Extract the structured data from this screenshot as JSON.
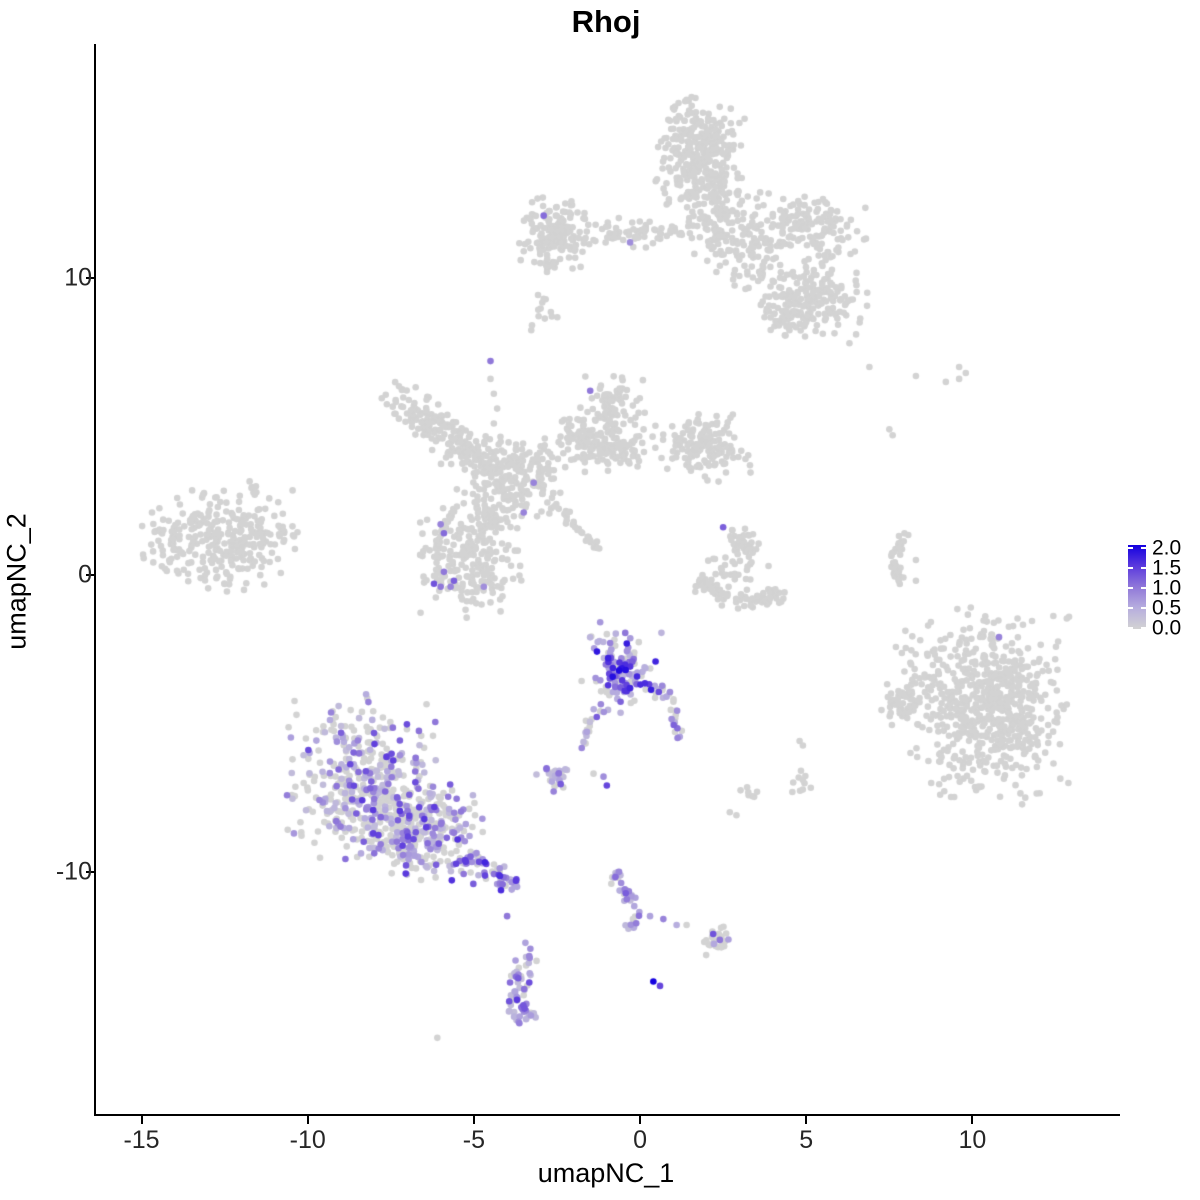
{
  "title": "Rhoj",
  "axes": {
    "x_label": "umapNC_1",
    "y_label": "umapNC_2"
  },
  "legend": {
    "labels": [
      "2.0",
      "1.5",
      "1.0",
      "0.5",
      "0.0"
    ],
    "values": [
      2.0,
      1.5,
      1.0,
      0.5,
      0.0
    ],
    "domain": [
      0,
      2
    ]
  },
  "colors": {
    "background": "#ffffff",
    "axis": "#000000",
    "gray_point": "#d3d3d3",
    "ramp_stops": [
      [
        0,
        "#d3d3d3"
      ],
      [
        0.5,
        "#b7aede"
      ],
      [
        1.0,
        "#9078d9"
      ],
      [
        1.5,
        "#5b3add"
      ],
      [
        2.0,
        "#1400e0"
      ]
    ]
  },
  "chart_data": {
    "type": "scatter",
    "title": "Rhoj",
    "xlabel": "umapNC_1",
    "ylabel": "umapNC_2",
    "x_ticks": [
      -15,
      -10,
      -5,
      0,
      5,
      10
    ],
    "y_ticks": [
      10,
      0,
      -10
    ],
    "xlim": [
      -16.4,
      14.35
    ],
    "ylim": [
      -18.2,
      17.85
    ],
    "grid": false,
    "legend_position": "right",
    "point_radius_px": 3.3,
    "clusters": [
      {
        "name": "top-main-blob",
        "shape": "gauss",
        "x": 1.8,
        "y": 14.1,
        "sx": 0.6,
        "sy": 0.95,
        "rot": 0,
        "n": 320,
        "pos": 0,
        "emax": 0
      },
      {
        "name": "top-down-ext",
        "shape": "gauss",
        "x": 2.5,
        "y": 11.8,
        "sx": 0.55,
        "sy": 0.8,
        "rot": 0,
        "n": 120,
        "pos": 0,
        "emax": 0
      },
      {
        "name": "top-right-arm-upper",
        "shape": "gauss",
        "x": 5.1,
        "y": 11.8,
        "sx": 0.85,
        "sy": 0.5,
        "rot": -20,
        "n": 140,
        "pos": 0,
        "emax": 0
      },
      {
        "name": "top-right-arm-lower",
        "shape": "gauss",
        "x": 5.3,
        "y": 9.4,
        "sx": 0.7,
        "sy": 0.6,
        "rot": 0,
        "n": 150,
        "pos": 0,
        "emax": 0
      },
      {
        "name": "top-right-arm-lower2",
        "shape": "gauss",
        "x": 4.4,
        "y": 8.9,
        "sx": 0.4,
        "sy": 0.4,
        "rot": 0,
        "n": 60,
        "pos": 0,
        "emax": 0
      },
      {
        "name": "top-arm-bridge",
        "shape": "gauss",
        "x": 3.6,
        "y": 10.6,
        "sx": 0.5,
        "sy": 0.75,
        "rot": 25,
        "n": 80,
        "pos": 0,
        "emax": 0
      },
      {
        "name": "top-left-arm-dense",
        "shape": "gauss",
        "x": -2.5,
        "y": 11.45,
        "sx": 0.5,
        "sy": 0.6,
        "rot": 0,
        "n": 150,
        "pos": 0,
        "emax": 0
      },
      {
        "name": "top-left-arm-band",
        "shape": "gauss",
        "x": -0.2,
        "y": 11.55,
        "sx": 1.0,
        "sy": 0.25,
        "rot": 0,
        "n": 70,
        "pos": 0,
        "emax": 0
      },
      {
        "name": "top-left-minor",
        "shape": "gauss",
        "x": -2.9,
        "y": 8.85,
        "sx": 0.25,
        "sy": 0.3,
        "rot": 0,
        "n": 12,
        "pos": 0,
        "emax": 0
      },
      {
        "name": "mid-left-cluster",
        "shape": "gauss",
        "x": -12.6,
        "y": 1.25,
        "sx": 1.05,
        "sy": 0.8,
        "rot": 0,
        "n": 270,
        "pos": 0,
        "emax": 0
      },
      {
        "name": "mid-left-tip",
        "shape": "gauss",
        "x": -10.8,
        "y": 1.45,
        "sx": 0.3,
        "sy": 0.18,
        "rot": 0,
        "n": 14,
        "pos": 0,
        "emax": 0
      },
      {
        "name": "mid-left-top-dots",
        "shape": "gauss",
        "x": -11.6,
        "y": 2.85,
        "sx": 0.2,
        "sy": 0.2,
        "rot": 0,
        "n": 6,
        "pos": 0,
        "emax": 0
      },
      {
        "name": "mid-left-west-sparse",
        "shape": "gauss",
        "x": -14.3,
        "y": 1.0,
        "sx": 0.35,
        "sy": 0.4,
        "rot": 0,
        "n": 18,
        "pos": 0,
        "emax": 0
      },
      {
        "name": "central-snake",
        "shape": "gauss",
        "x": -6.3,
        "y": 5.2,
        "sx": 0.85,
        "sy": 0.3,
        "rot": -35,
        "n": 130,
        "pos": 0,
        "emax": 0
      },
      {
        "name": "central-node",
        "shape": "gauss",
        "x": -3.8,
        "y": 3.3,
        "sx": 0.8,
        "sy": 0.65,
        "rot": 0,
        "n": 220,
        "pos": 0,
        "emax": 0
      },
      {
        "name": "central-link",
        "shape": "gauss",
        "x": -5.6,
        "y": 4.3,
        "sx": 0.5,
        "sy": 0.35,
        "rot": 0,
        "n": 35,
        "pos": 0,
        "emax": 0
      },
      {
        "name": "central-upper-arm",
        "shape": "gauss",
        "x": -1.15,
        "y": 4.3,
        "sx": 0.8,
        "sy": 0.4,
        "rot": -10,
        "n": 160,
        "pos": 0,
        "emax": 0
      },
      {
        "name": "central-up-blob",
        "shape": "gauss",
        "x": -0.8,
        "y": 5.7,
        "sx": 0.45,
        "sy": 0.45,
        "rot": 0,
        "n": 80,
        "pos": 0,
        "emax": 0
      },
      {
        "name": "central-right-pocket",
        "shape": "gauss",
        "x": 1.9,
        "y": 4.3,
        "sx": 0.65,
        "sy": 0.55,
        "rot": 0,
        "n": 150,
        "pos": 0,
        "emax": 0
      },
      {
        "name": "central-lower-blob",
        "shape": "gauss",
        "x": -5.15,
        "y": 0.6,
        "sx": 0.7,
        "sy": 0.9,
        "rot": 0,
        "n": 230,
        "pos": 0,
        "emax": 0
      },
      {
        "name": "central-node-lower-link",
        "shape": "gauss",
        "x": -4.6,
        "y": 2.0,
        "sx": 0.4,
        "sy": 0.5,
        "rot": 0,
        "n": 45,
        "pos": 0,
        "emax": 0
      },
      {
        "name": "comma-top",
        "shape": "gauss",
        "x": 3.15,
        "y": 1.0,
        "sx": 0.25,
        "sy": 0.3,
        "rot": 0,
        "n": 45,
        "pos": 0,
        "emax": 0
      },
      {
        "name": "comma-mid",
        "shape": "gauss",
        "x": 2.75,
        "y": 0.15,
        "sx": 0.5,
        "sy": 0.25,
        "rot": 0,
        "n": 20,
        "pos": 0,
        "emax": 0
      },
      {
        "name": "far-right-main",
        "shape": "gauss",
        "x": 10.55,
        "y": -4.4,
        "sx": 1.05,
        "sy": 1.45,
        "rot": 0,
        "n": 620,
        "pos": 0,
        "emax": 0
      },
      {
        "name": "far-right-sub",
        "shape": "gauss",
        "x": 7.95,
        "y": -4.4,
        "sx": 0.3,
        "sy": 0.35,
        "rot": 0,
        "n": 45,
        "pos": 0,
        "emax": 0
      },
      {
        "name": "far-right-edge",
        "shape": "gauss",
        "x": 8.4,
        "y": -3.0,
        "sx": 0.45,
        "sy": 0.8,
        "rot": 0,
        "n": 30,
        "pos": 0,
        "emax": 0
      },
      {
        "name": "bottom-left-a",
        "shape": "gauss",
        "x": -8.4,
        "y": -6.9,
        "sx": 1.0,
        "sy": 1.25,
        "rot": 0,
        "n": 420,
        "pos": 0.4,
        "emax": 1.5
      },
      {
        "name": "bottom-left-b",
        "shape": "gauss",
        "x": -6.6,
        "y": -8.7,
        "sx": 0.9,
        "sy": 0.75,
        "rot": 0,
        "n": 300,
        "pos": 0.45,
        "emax": 1.6
      },
      {
        "name": "c8-purple-main",
        "shape": "gauss",
        "x": -0.55,
        "y": -3.3,
        "sx": 0.55,
        "sy": 0.65,
        "rot": 0,
        "n": 135,
        "pos": 0.72,
        "emax": 2.0
      },
      {
        "name": "small-mixed",
        "shape": "gauss",
        "x": -2.45,
        "y": -6.7,
        "sx": 0.3,
        "sy": 0.25,
        "rot": 0,
        "n": 26,
        "pos": 0.7,
        "emax": 1.3
      },
      {
        "name": "bottom-small",
        "shape": "gauss",
        "x": 2.3,
        "y": -12.3,
        "sx": 0.25,
        "sy": 0.28,
        "rot": 0,
        "n": 26,
        "pos": 0.12,
        "emax": 1.2
      },
      {
        "name": "v-purple-patch",
        "shape": "gauss",
        "x": -3.6,
        "y": -14.6,
        "sx": 0.18,
        "sy": 0.28,
        "rot": 0,
        "n": 16,
        "pos": 0.85,
        "emax": 1.5
      },
      {
        "name": "dot-blob-se1",
        "shape": "gauss",
        "x": 4.8,
        "y": -7.0,
        "sx": 0.2,
        "sy": 0.2,
        "rot": 0,
        "n": 10,
        "pos": 0,
        "emax": 0
      },
      {
        "name": "dot-blob-se2",
        "shape": "gauss",
        "x": 3.3,
        "y": -7.45,
        "sx": 0.14,
        "sy": 0.14,
        "rot": 0,
        "n": 7,
        "pos": 0,
        "emax": 0
      }
    ],
    "paths": [
      {
        "name": "comma-arc",
        "pts": [
          [
            1.7,
            -0.1
          ],
          [
            2.8,
            -0.9
          ],
          [
            4.4,
            -0.7
          ]
        ],
        "n": 85,
        "w": 0.15,
        "pos": 0,
        "emax": 0
      },
      {
        "name": "right-crescent",
        "pts": [
          [
            7.95,
            1.4
          ],
          [
            7.6,
            0.5
          ],
          [
            7.85,
            -0.35
          ]
        ],
        "n": 38,
        "w": 0.06,
        "pos": 0,
        "emax": 0
      },
      {
        "name": "bottom-left-tail",
        "pts": [
          [
            -5.4,
            -9.5
          ],
          [
            -4.5,
            -10.0
          ],
          [
            -3.75,
            -10.55
          ]
        ],
        "n": 60,
        "w": 0.22,
        "pos": 0.78,
        "emax": 1.8
      },
      {
        "name": "c8-right-chain",
        "pts": [
          [
            0.4,
            -3.6
          ],
          [
            1.05,
            -4.5
          ],
          [
            1.2,
            -5.5
          ]
        ],
        "n": 28,
        "w": 0.1,
        "pos": 0.6,
        "emax": 1.6
      },
      {
        "name": "c8-left-tail",
        "pts": [
          [
            -1.2,
            -4.4
          ],
          [
            -1.7,
            -5.8
          ]
        ],
        "n": 16,
        "w": 0.1,
        "pos": 0.8,
        "emax": 1.4
      },
      {
        "name": "s-chain",
        "pts": [
          [
            -0.9,
            -10.0
          ],
          [
            -0.4,
            -10.7
          ],
          [
            -0.1,
            -11.4
          ],
          [
            -0.3,
            -12.0
          ]
        ],
        "n": 36,
        "w": 0.09,
        "pos": 0.85,
        "emax": 1.5
      },
      {
        "name": "vertical-purple-chain",
        "pts": [
          [
            -3.4,
            -12.8
          ],
          [
            -3.7,
            -13.7
          ],
          [
            -3.6,
            -14.6
          ],
          [
            -3.3,
            -15.0
          ]
        ],
        "n": 46,
        "w": 0.18,
        "pos": 0.8,
        "emax": 1.5
      },
      {
        "name": "comet-streak",
        "pts": [
          [
            -2.5,
            2.3
          ],
          [
            -1.1,
            0.7
          ]
        ],
        "n": 30,
        "w": 0.08,
        "pos": 0,
        "emax": 0
      }
    ],
    "gray_singles": [
      [
        -3.0,
        10.5
      ],
      [
        -2.8,
        10.2
      ],
      [
        -2.9,
        9.3
      ],
      [
        -3.3,
        11.0
      ],
      [
        -3.5,
        10.9
      ],
      [
        -4.5,
        6.6
      ],
      [
        -4.4,
        6.1
      ],
      [
        -4.3,
        5.6
      ],
      [
        -4.4,
        5.1
      ],
      [
        -4.2,
        4.65
      ],
      [
        6.9,
        7.0
      ],
      [
        8.3,
        6.7
      ],
      [
        9.2,
        6.5
      ],
      [
        9.6,
        7.0
      ],
      [
        9.8,
        6.8
      ],
      [
        9.6,
        6.6
      ],
      [
        7.5,
        4.9
      ],
      [
        7.6,
        4.7
      ],
      [
        8.3,
        0.5
      ],
      [
        8.3,
        -0.2
      ],
      [
        6.5,
        8.1
      ],
      [
        6.3,
        7.8
      ],
      [
        2.7,
        -8.0
      ],
      [
        2.9,
        -8.1
      ],
      [
        4.8,
        -5.6
      ],
      [
        4.9,
        -5.75
      ],
      [
        -6.1,
        -15.6
      ],
      [
        1.4,
        -11.8
      ],
      [
        -1.4,
        -6.7
      ],
      [
        -1.0,
        -2.0
      ]
    ],
    "colored_singles": [
      [
        -2.9,
        12.1,
        1.1
      ],
      [
        -0.3,
        11.2,
        0.8
      ],
      [
        -4.5,
        7.2,
        1.0
      ],
      [
        -1.5,
        6.2,
        1.0
      ],
      [
        -6.0,
        1.7,
        0.9
      ],
      [
        -5.9,
        1.4,
        1.1
      ],
      [
        -5.9,
        0.1,
        1.0
      ],
      [
        -5.6,
        -0.2,
        1.2
      ],
      [
        -6.2,
        -0.3,
        1.3
      ],
      [
        -6.0,
        -0.4,
        1.0
      ],
      [
        -5.7,
        -0.4,
        0.9
      ],
      [
        -4.7,
        -0.4,
        0.8
      ],
      [
        -3.5,
        2.1,
        0.9
      ],
      [
        -3.2,
        3.1,
        0.9
      ],
      [
        2.5,
        1.6,
        1.2
      ],
      [
        10.8,
        -2.1,
        0.9
      ],
      [
        -4.0,
        -11.5,
        1.0
      ],
      [
        -2.6,
        -7.3,
        0.9
      ],
      [
        -1.1,
        -6.8,
        0.8
      ],
      [
        -1.0,
        -7.1,
        1.4
      ],
      [
        -1.2,
        -1.6,
        0.7
      ],
      [
        -0.9,
        -2.3,
        0.9
      ],
      [
        0.3,
        -11.5,
        0.6
      ],
      [
        0.7,
        -11.6,
        0.9
      ],
      [
        1.1,
        -11.8,
        0.5
      ],
      [
        2.2,
        -12.1,
        1.3
      ],
      [
        2.4,
        -12.3,
        1.0
      ],
      [
        0.4,
        -13.7,
        2.0
      ],
      [
        0.6,
        -13.85,
        1.4
      ],
      [
        -3.3,
        -12.6,
        0.8
      ],
      [
        -3.45,
        -12.4,
        0.6
      ]
    ]
  }
}
